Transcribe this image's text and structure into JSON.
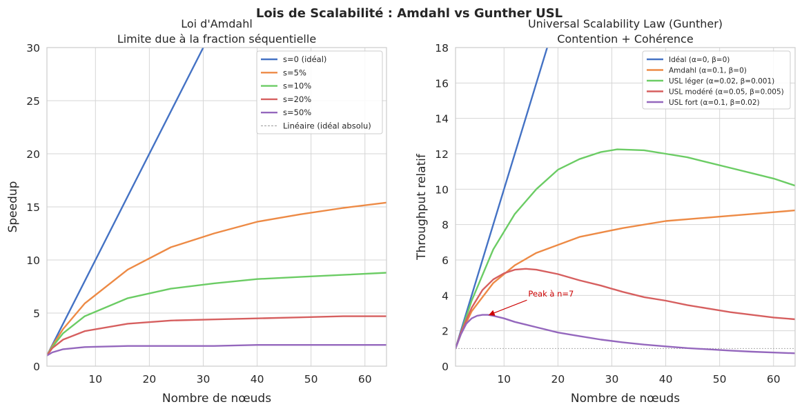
{
  "figure": {
    "suptitle": "Lois de Scalabilité : Amdahl vs Gunther USL"
  },
  "chart_data": [
    {
      "type": "line",
      "title": "Loi d'Amdahl\nLimite due à la fraction séquentielle",
      "xlabel": "Nombre de nœuds",
      "ylabel": "Speedup",
      "xlim": [
        1,
        64
      ],
      "ylim": [
        0,
        30
      ],
      "xticks": [
        10,
        20,
        30,
        40,
        50,
        60
      ],
      "yticks": [
        0,
        5,
        10,
        15,
        20,
        25,
        30
      ],
      "grid": true,
      "legend_position": "top-right",
      "series": [
        {
          "name": "s=0 (idéal)",
          "color": "#4472c4",
          "values": [
            [
              1,
              1
            ],
            [
              8,
              8
            ],
            [
              16,
              16
            ],
            [
              24,
              24
            ],
            [
              30,
              30
            ]
          ]
        },
        {
          "name": "s=5%",
          "color": "#ed8a45",
          "values": [
            [
              1,
              1
            ],
            [
              2,
              1.9
            ],
            [
              4,
              3.5
            ],
            [
              8,
              5.9
            ],
            [
              16,
              9.1
            ],
            [
              24,
              11.2
            ],
            [
              32,
              12.5
            ],
            [
              40,
              13.6
            ],
            [
              48,
              14.3
            ],
            [
              56,
              14.9
            ],
            [
              64,
              15.4
            ]
          ]
        },
        {
          "name": "s=10%",
          "color": "#6bcc64",
          "values": [
            [
              1,
              1
            ],
            [
              2,
              1.8
            ],
            [
              4,
              3.1
            ],
            [
              8,
              4.7
            ],
            [
              16,
              6.4
            ],
            [
              24,
              7.3
            ],
            [
              32,
              7.8
            ],
            [
              40,
              8.2
            ],
            [
              48,
              8.4
            ],
            [
              56,
              8.6
            ],
            [
              64,
              8.8
            ]
          ]
        },
        {
          "name": "s=20%",
          "color": "#d65f5f",
          "values": [
            [
              1,
              1
            ],
            [
              2,
              1.7
            ],
            [
              4,
              2.5
            ],
            [
              8,
              3.3
            ],
            [
              16,
              4.0
            ],
            [
              24,
              4.3
            ],
            [
              32,
              4.4
            ],
            [
              40,
              4.5
            ],
            [
              48,
              4.6
            ],
            [
              56,
              4.7
            ],
            [
              64,
              4.7
            ]
          ]
        },
        {
          "name": "s=50%",
          "color": "#9467bd",
          "values": [
            [
              1,
              1
            ],
            [
              2,
              1.3
            ],
            [
              4,
              1.6
            ],
            [
              8,
              1.8
            ],
            [
              16,
              1.9
            ],
            [
              24,
              1.9
            ],
            [
              32,
              1.9
            ],
            [
              40,
              2.0
            ],
            [
              48,
              2.0
            ],
            [
              56,
              2.0
            ],
            [
              64,
              2.0
            ]
          ]
        },
        {
          "name": "Linéaire (idéal absolu)",
          "color": "#999999",
          "dashed": true,
          "values": [
            [
              1,
              1
            ],
            [
              30,
              30
            ]
          ]
        }
      ]
    },
    {
      "type": "line",
      "title": "Universal Scalability Law (Gunther)\nContention + Cohérence",
      "xlabel": "Nombre de nœuds",
      "ylabel": "Throughput relatif",
      "xlim": [
        1,
        64
      ],
      "ylim": [
        0,
        18
      ],
      "xticks": [
        10,
        20,
        30,
        40,
        50,
        60
      ],
      "yticks": [
        0,
        2,
        4,
        6,
        8,
        10,
        12,
        14,
        16,
        18
      ],
      "grid": true,
      "legend_position": "top-right",
      "reference_line": {
        "y": 1,
        "color": "#aaaaaa"
      },
      "series": [
        {
          "name": "Idéal (α=0, β=0)",
          "color": "#4472c4",
          "values": [
            [
              1,
              1
            ],
            [
              6,
              6
            ],
            [
              12,
              12
            ],
            [
              18,
              18
            ]
          ]
        },
        {
          "name": "Amdahl (α=0.1, β=0)",
          "color": "#ed8a45",
          "values": [
            [
              1,
              1
            ],
            [
              2,
              1.8
            ],
            [
              4,
              3.1
            ],
            [
              8,
              4.7
            ],
            [
              12,
              5.7
            ],
            [
              16,
              6.4
            ],
            [
              24,
              7.3
            ],
            [
              32,
              7.8
            ],
            [
              40,
              8.2
            ],
            [
              48,
              8.4
            ],
            [
              56,
              8.6
            ],
            [
              64,
              8.8
            ]
          ]
        },
        {
          "name": "USL léger (α=0.02, β=0.001)",
          "color": "#6bcc64",
          "values": [
            [
              1,
              1
            ],
            [
              2,
              1.9
            ],
            [
              4,
              3.7
            ],
            [
              8,
              6.6
            ],
            [
              12,
              8.6
            ],
            [
              16,
              10.0
            ],
            [
              20,
              11.1
            ],
            [
              24,
              11.7
            ],
            [
              28,
              12.1
            ],
            [
              31,
              12.25
            ],
            [
              36,
              12.2
            ],
            [
              40,
              12.0
            ],
            [
              44,
              11.8
            ],
            [
              48,
              11.5
            ],
            [
              52,
              11.2
            ],
            [
              56,
              10.9
            ],
            [
              60,
              10.6
            ],
            [
              64,
              10.2
            ]
          ]
        },
        {
          "name": "USL modéré (α=0.05, β=0.005)",
          "color": "#d65f5f",
          "values": [
            [
              1,
              1
            ],
            [
              2,
              1.9
            ],
            [
              4,
              3.3
            ],
            [
              6,
              4.3
            ],
            [
              8,
              4.9
            ],
            [
              10,
              5.25
            ],
            [
              12,
              5.45
            ],
            [
              14,
              5.5
            ],
            [
              16,
              5.45
            ],
            [
              20,
              5.2
            ],
            [
              24,
              4.85
            ],
            [
              28,
              4.55
            ],
            [
              32,
              4.2
            ],
            [
              36,
              3.9
            ],
            [
              40,
              3.7
            ],
            [
              44,
              3.45
            ],
            [
              48,
              3.25
            ],
            [
              52,
              3.05
            ],
            [
              56,
              2.9
            ],
            [
              60,
              2.75
            ],
            [
              64,
              2.65
            ]
          ]
        },
        {
          "name": "USL fort (α=0.1, β=0.02)",
          "color": "#9467bd",
          "values": [
            [
              1,
              1
            ],
            [
              2,
              1.8
            ],
            [
              3,
              2.4
            ],
            [
              4,
              2.7
            ],
            [
              5,
              2.85
            ],
            [
              6,
              2.9
            ],
            [
              7,
              2.9
            ],
            [
              8,
              2.85
            ],
            [
              10,
              2.7
            ],
            [
              12,
              2.5
            ],
            [
              16,
              2.2
            ],
            [
              20,
              1.9
            ],
            [
              24,
              1.7
            ],
            [
              28,
              1.5
            ],
            [
              32,
              1.35
            ],
            [
              36,
              1.22
            ],
            [
              40,
              1.12
            ],
            [
              44,
              1.02
            ],
            [
              48,
              0.95
            ],
            [
              52,
              0.88
            ],
            [
              56,
              0.82
            ],
            [
              60,
              0.77
            ],
            [
              64,
              0.73
            ]
          ]
        }
      ],
      "annotations": [
        {
          "text": "Peak à n=7",
          "xy": [
            7,
            2.9
          ],
          "xytext": [
            14.5,
            3.85
          ],
          "color": "#cc0000"
        }
      ]
    }
  ]
}
